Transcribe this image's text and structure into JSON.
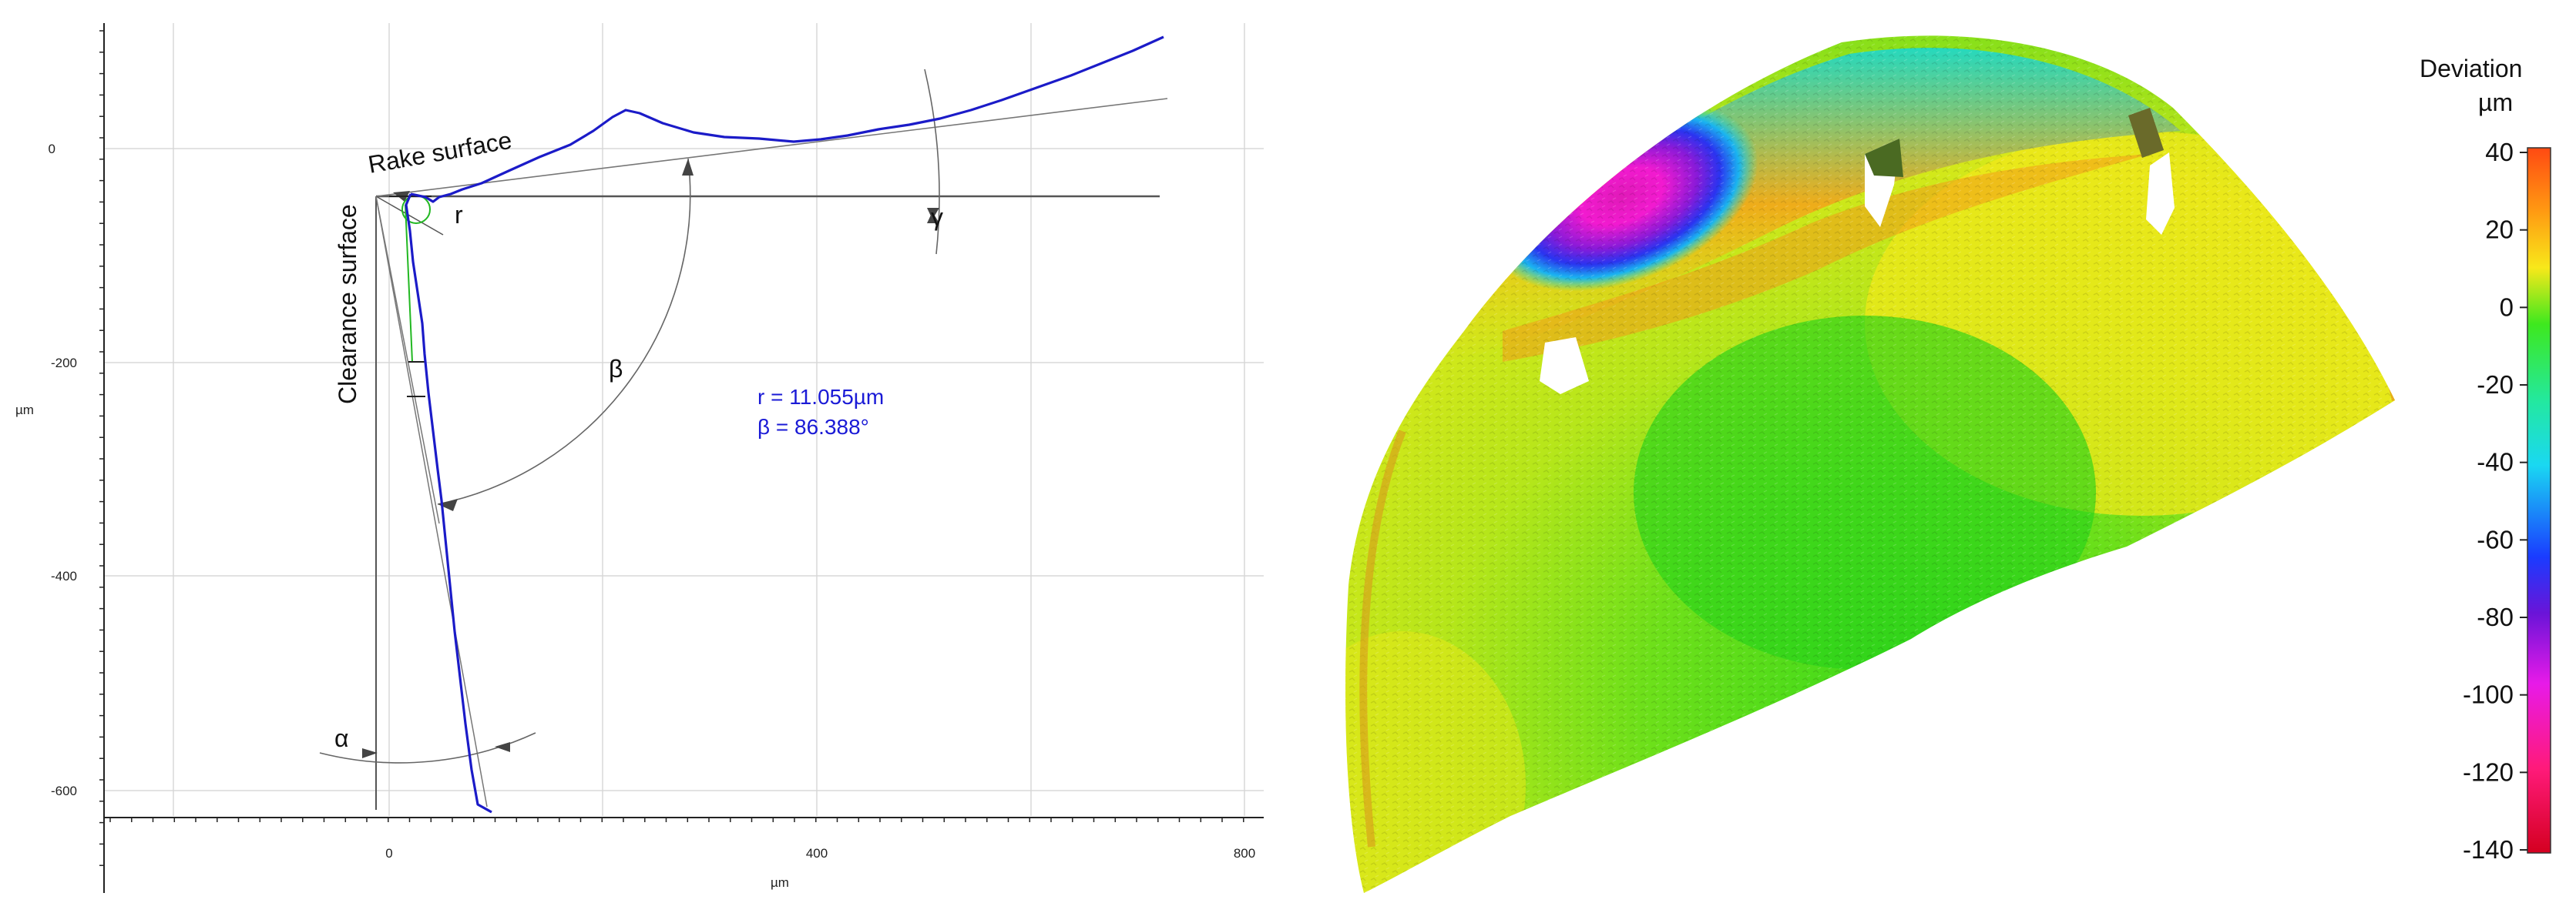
{
  "profile_plot": {
    "x_ticks": [
      "0",
      "400",
      "800"
    ],
    "y_ticks": [
      "0",
      "-200",
      "-400",
      "-600"
    ],
    "x_unit": "µm",
    "y_unit": "µm",
    "rake_label": "Rake surface",
    "clearance_label": "Clearance surface",
    "angle_labels": {
      "radius": "r",
      "beta": "β",
      "gamma": "γ",
      "alpha": "α"
    },
    "measure_r": "r = 11.055µm",
    "measure_beta": "β = 86.388°",
    "colors": {
      "profile": "#1b1bc8",
      "edge_fit": "#22b822",
      "reference": "#555555",
      "grid": "#d8d8d8"
    }
  },
  "deviation_map": {
    "legend_title": "Deviation",
    "legend_unit": "µm",
    "legend_ticks": [
      "40",
      "20",
      "0",
      "-20",
      "-40",
      "-60",
      "-80",
      "-100",
      "-120",
      "-140"
    ],
    "legend_colors": [
      "#ff3a1a",
      "#ff8a1a",
      "#ffe81a",
      "#39e81a",
      "#1ae8d8",
      "#1a5aff",
      "#6a1ad8",
      "#e81ae0",
      "#ff1a6a",
      "#d8002a"
    ]
  }
}
